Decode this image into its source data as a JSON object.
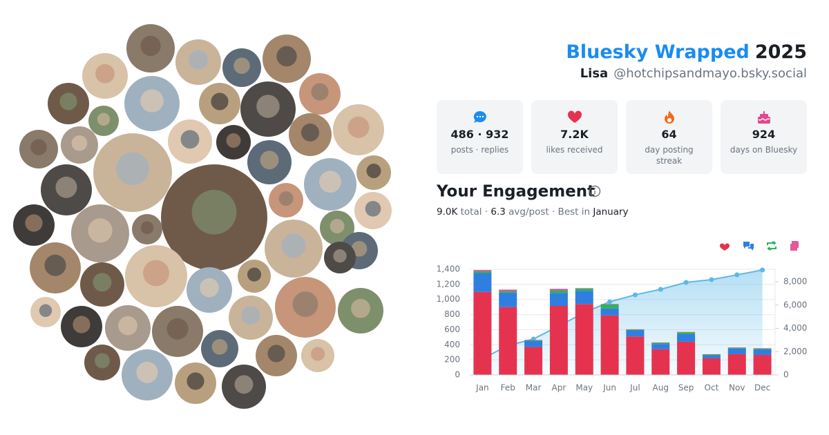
{
  "header": {
    "title": "Bluesky Wrapped",
    "year": "2025",
    "name": "Lisa",
    "handle": "@hotchipsandmayo.bsky.social"
  },
  "stats": [
    {
      "value": "486 · 932",
      "label": "posts · replies"
    },
    {
      "value": "7.2K",
      "label": "likes received"
    },
    {
      "value": "64",
      "label": "day posting streak"
    },
    {
      "value": "924",
      "label": "days on Bluesky"
    }
  ],
  "engagement": {
    "title": "Your Engagement",
    "summary": [
      "9.0K",
      " total · ",
      "6.3",
      " avg/post · Best in ",
      "January"
    ]
  },
  "chart_data": {
    "type": "bar",
    "stacked": true,
    "categories": [
      "Jan",
      "Feb",
      "Mar",
      "Apr",
      "May",
      "Jun",
      "Jul",
      "Aug",
      "Sep",
      "Oct",
      "Nov",
      "Dec"
    ],
    "series": [
      {
        "color": "#e5334f",
        "values": [
          1100,
          900,
          370,
          915,
          940,
          790,
          510,
          340,
          440,
          220,
          275,
          265
        ]
      },
      {
        "color": "#2f7fe0",
        "values": [
          250,
          190,
          80,
          170,
          175,
          90,
          80,
          70,
          100,
          40,
          75,
          75
        ]
      },
      {
        "color": "#2db35a",
        "values": [
          25,
          20,
          10,
          35,
          30,
          55,
          10,
          15,
          25,
          10,
          10,
          10
        ]
      },
      {
        "color": "#e0488f",
        "values": [
          15,
          20,
          5,
          20,
          5,
          5,
          5,
          5,
          5,
          5,
          5,
          5
        ]
      },
      {
        "type": "area",
        "axis": "y2",
        "color": "#5bb8e8",
        "values": [
          1390,
          2520,
          3080,
          4200,
          5350,
          6280,
          6870,
          7350,
          7940,
          8180,
          8590,
          9010
        ]
      }
    ],
    "ylim": [
      0,
      1400
    ],
    "yticks": [
      0,
      200,
      400,
      600,
      800,
      {
        "value": 1000,
        "label": "1,000"
      },
      {
        "value": 1200,
        "label": "1,200"
      },
      {
        "value": 1400,
        "label": "1,400"
      }
    ],
    "y2lim": [
      0,
      9067
    ],
    "y2ticks": [
      0,
      {
        "value": 2000,
        "label": "2,000"
      },
      {
        "value": 4000,
        "label": "4,000"
      },
      {
        "value": 6000,
        "label": "6,000"
      },
      {
        "value": 8000,
        "label": "8,000"
      }
    ],
    "grid": true
  }
}
